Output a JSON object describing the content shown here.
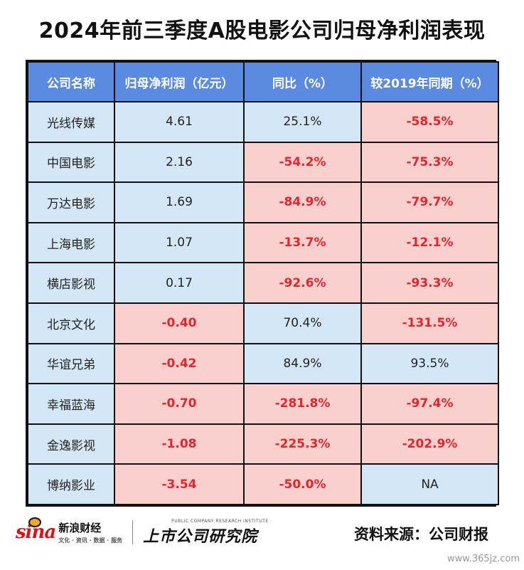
{
  "title": "2024年前三季度A股电影公司归母净利润表现",
  "chart_data": {
    "type": "table",
    "columns": [
      "公司名称",
      "归母净利润（亿元）",
      "同比（%）",
      "较2019年同期（%）"
    ],
    "rows": [
      {
        "company": "光线传媒",
        "profit": "4.61",
        "yoy": "25.1%",
        "vs2019": "-58.5%"
      },
      {
        "company": "中国电影",
        "profit": "2.16",
        "yoy": "-54.2%",
        "vs2019": "-75.3%"
      },
      {
        "company": "万达电影",
        "profit": "1.69",
        "yoy": "-84.9%",
        "vs2019": "-79.7%"
      },
      {
        "company": "上海电影",
        "profit": "1.07",
        "yoy": "-13.7%",
        "vs2019": "-12.1%"
      },
      {
        "company": "横店影视",
        "profit": "0.17",
        "yoy": "-92.6%",
        "vs2019": "-93.3%"
      },
      {
        "company": "北京文化",
        "profit": "-0.40",
        "yoy": "70.4%",
        "vs2019": "-131.5%"
      },
      {
        "company": "华谊兄弟",
        "profit": "-0.42",
        "yoy": "84.9%",
        "vs2019": "93.5%"
      },
      {
        "company": "幸福蓝海",
        "profit": "-0.70",
        "yoy": "-281.8%",
        "vs2019": "-97.4%"
      },
      {
        "company": "金逸影视",
        "profit": "-1.08",
        "yoy": "-225.3%",
        "vs2019": "-202.9%"
      },
      {
        "company": "博纳影业",
        "profit": "-3.54",
        "yoy": "-50.0%",
        "vs2019": "NA"
      }
    ]
  },
  "colors": {
    "header_bg": "#5b8be0",
    "positive_bg": "#d4e7f6",
    "negative_bg": "#fad0cf",
    "negative_text": "#e6242b"
  },
  "footer": {
    "sina_logo": "sina",
    "sina_name": "新浪财经",
    "sina_tagline": "文化 · 资讯 · 数据 · 服务",
    "institute_sub": "PUBLIC COMPANY RESEARCH INSTITUTE",
    "institute_name": "上市公司研究院",
    "source": "资料来源：公司财报",
    "watermark": "www.365jz.com"
  }
}
